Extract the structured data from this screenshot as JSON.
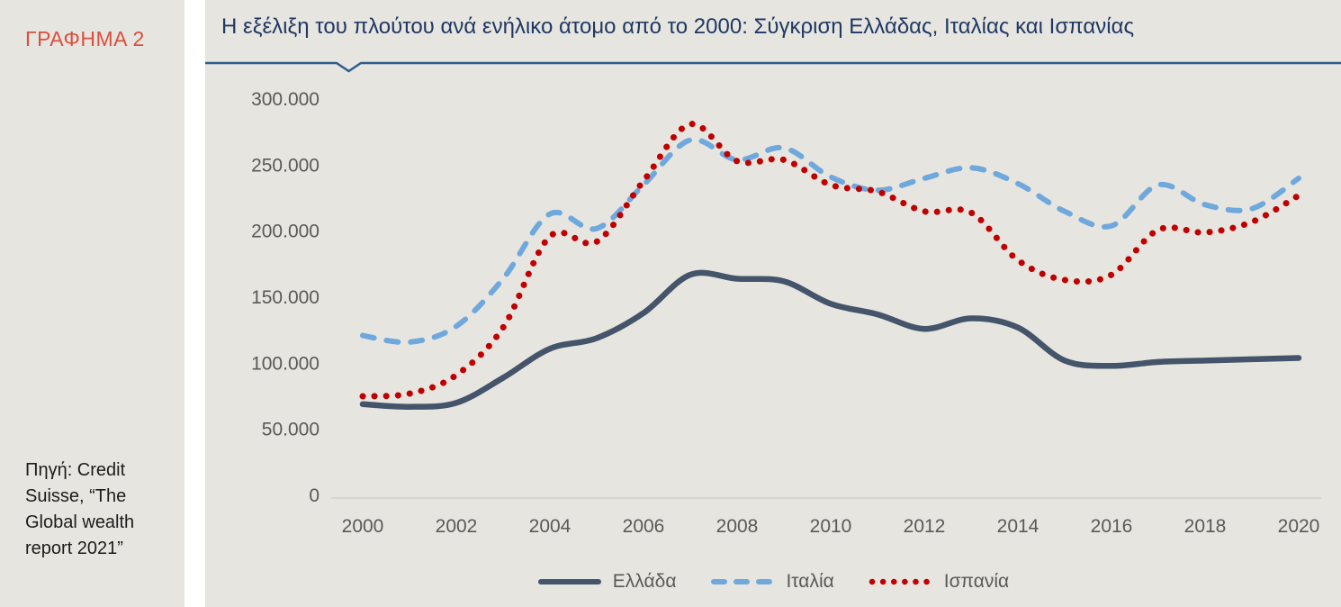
{
  "sidebar": {
    "figure_label": "ΓΡΑΦΗΜΑ 2",
    "source_lines": [
      "Πηγή: Credit",
      "Suisse, “The",
      "Global wealth",
      "report 2021”"
    ]
  },
  "chart": {
    "title": "Η εξέλιξη του πλούτου ανά ενήλικο άτομο από το 2000: Σύγκριση Ελλάδας, Ιταλίας και Ισπανίας"
  },
  "colors": {
    "panel_background": "#e7e5df",
    "figure_label": "#d9503f",
    "title": "#1f3864",
    "title_rule": "#2f5d8d",
    "axis_text": "#595959",
    "axis_line": "#d3d1ca",
    "greece": "#44546a",
    "italy": "#6fa8dc",
    "spain": "#c00000"
  },
  "chart_data": {
    "type": "line",
    "title": "Η εξέλιξη του πλούτου ανά ενήλικο άτομο από το 2000: Σύγκριση Ελλάδας, Ιταλίας και Ισπανίας",
    "xlabel": "",
    "ylabel": "",
    "x": [
      2000,
      2001,
      2002,
      2003,
      2004,
      2005,
      2006,
      2007,
      2008,
      2009,
      2010,
      2011,
      2012,
      2013,
      2014,
      2015,
      2016,
      2017,
      2018,
      2019,
      2020
    ],
    "series": [
      {
        "name": "Ελλάδα",
        "color": "#44546a",
        "style": "solid",
        "values": [
          69000,
          67000,
          70000,
          89000,
          111000,
          119000,
          138000,
          167000,
          164000,
          162000,
          145000,
          137000,
          126000,
          134000,
          127000,
          102000,
          98000,
          101000,
          102000,
          103000,
          104000
        ]
      },
      {
        "name": "Ιταλία",
        "color": "#6fa8dc",
        "style": "dashed",
        "values": [
          121000,
          116000,
          128000,
          164000,
          213000,
          202000,
          235000,
          269000,
          254000,
          263000,
          241000,
          231000,
          240000,
          248000,
          236000,
          215000,
          204000,
          235000,
          220000,
          217000,
          240000
        ]
      },
      {
        "name": "Ισπανία",
        "color": "#c00000",
        "style": "dotted",
        "values": [
          75000,
          77000,
          91000,
          127000,
          196000,
          192000,
          238000,
          281000,
          253000,
          254000,
          235000,
          230000,
          215000,
          214000,
          178000,
          163000,
          167000,
          201000,
          199000,
          207000,
          227000
        ]
      }
    ],
    "ylim": [
      0,
      300000
    ],
    "yticks": [
      {
        "value": 0,
        "label": "0"
      },
      {
        "value": 50000,
        "label": "50.000"
      },
      {
        "value": 100000,
        "label": "100.000"
      },
      {
        "value": 150000,
        "label": "150.000"
      },
      {
        "value": 200000,
        "label": "200.000"
      },
      {
        "value": 250000,
        "label": "250.000"
      },
      {
        "value": 300000,
        "label": "300.000"
      }
    ],
    "xticks": [
      2000,
      2002,
      2004,
      2006,
      2008,
      2010,
      2012,
      2014,
      2016,
      2018,
      2020
    ],
    "grid": false,
    "legend_position": "bottom"
  }
}
